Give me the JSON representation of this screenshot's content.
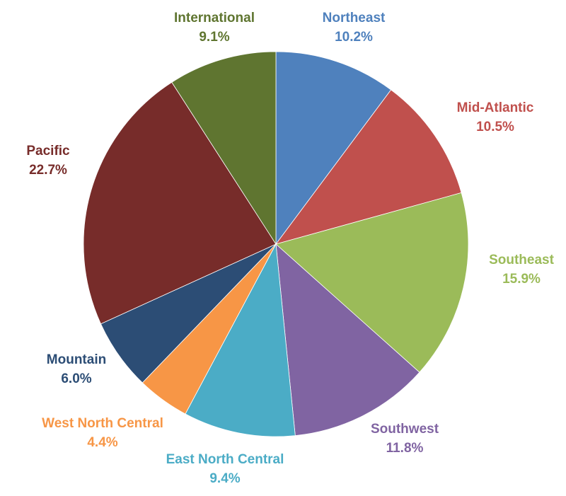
{
  "chart_data": {
    "type": "pie",
    "title": "",
    "start_angle_deg": 0,
    "direction": "clockwise",
    "slices": [
      {
        "label": "Northeast",
        "value": 10.2,
        "value_label": "10.2%",
        "color": "#4F81BD"
      },
      {
        "label": "Mid-Atlantic",
        "value": 10.5,
        "value_label": "10.5%",
        "color": "#C0504D"
      },
      {
        "label": "Southeast",
        "value": 15.9,
        "value_label": "15.9%",
        "color": "#9BBB59"
      },
      {
        "label": "Southwest",
        "value": 11.8,
        "value_label": "11.8%",
        "color": "#8064A2"
      },
      {
        "label": "East North Central",
        "value": 9.4,
        "value_label": "9.4%",
        "color": "#4BACC6"
      },
      {
        "label": "West North Central",
        "value": 4.4,
        "value_label": "4.4%",
        "color": "#F79646"
      },
      {
        "label": "Mountain",
        "value": 6.0,
        "value_label": "6.0%",
        "color": "#2C4D75"
      },
      {
        "label": "Pacific",
        "value": 22.7,
        "value_label": "22.7%",
        "color": "#772C2A"
      },
      {
        "label": "International",
        "value": 9.1,
        "value_label": "9.1%",
        "color": "#5F7530"
      }
    ]
  }
}
